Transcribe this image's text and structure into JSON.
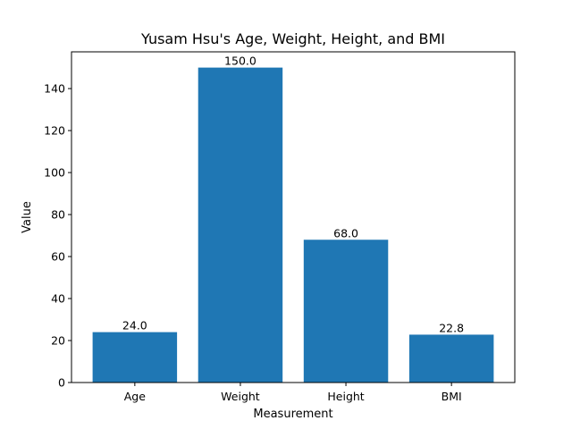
{
  "chart_data": {
    "type": "bar",
    "title": "Yusam Hsu's Age, Weight, Height, and BMI",
    "xlabel": "Measurement",
    "ylabel": "Value",
    "categories": [
      "Age",
      "Weight",
      "Height",
      "BMI"
    ],
    "values": [
      24.0,
      150.0,
      68.0,
      22.8
    ],
    "value_labels": [
      "24.0",
      "150.0",
      "68.0",
      "22.8"
    ],
    "ylim": [
      0,
      157.5
    ],
    "yticks": [
      0,
      20,
      40,
      60,
      80,
      100,
      120,
      140
    ],
    "bar_color": "#1f77b4",
    "grid": false,
    "legend": "none"
  }
}
